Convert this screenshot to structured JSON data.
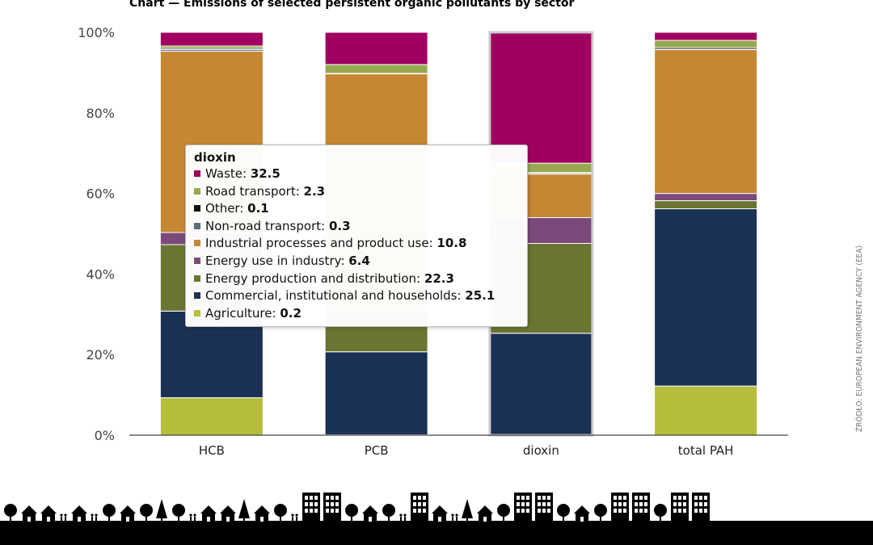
{
  "page": {
    "title": "Chart — Emissions of selected persistent organic pollutants by sector",
    "source": "ŹRÓDŁO: EUROPEAN ENVIRONMENT AGENCY (EEA)"
  },
  "chart_data": {
    "type": "bar",
    "stacked": true,
    "normalized": true,
    "categories": [
      "HCB",
      "PCB",
      "dioxin",
      "total PAH"
    ],
    "y_ticks": [
      "0%",
      "20%",
      "40%",
      "60%",
      "80%",
      "100%"
    ],
    "ylim": [
      0,
      100
    ],
    "grid": false,
    "series": [
      {
        "name": "Agriculture",
        "color": "#b5bd3a",
        "values": [
          9.3,
          0.1,
          0.2,
          12.2
        ]
      },
      {
        "name": "Commercial, institutional and households",
        "color": "#1b3055",
        "values": [
          21.5,
          20.6,
          25.1,
          44.0
        ]
      },
      {
        "name": "Energy production and distribution",
        "color": "#6b7431",
        "values": [
          16.5,
          6.5,
          22.3,
          2.0
        ]
      },
      {
        "name": "Energy use in industry",
        "color": "#7b4a7b",
        "values": [
          3.0,
          3.5,
          6.4,
          1.8
        ]
      },
      {
        "name": "Industrial processes and product use",
        "color": "#c68733",
        "values": [
          45.0,
          59.0,
          10.8,
          35.7
        ]
      },
      {
        "name": "Non-road transport",
        "color": "#5a6e80",
        "values": [
          0.4,
          0.1,
          0.3,
          0.1
        ]
      },
      {
        "name": "Other",
        "color": "#111111",
        "values": [
          0.3,
          0.0,
          0.1,
          0.4
        ]
      },
      {
        "name": "Road transport",
        "color": "#97a84f",
        "values": [
          0.6,
          2.2,
          2.3,
          1.8
        ]
      },
      {
        "name": "Waste",
        "color": "#a0005f",
        "values": [
          3.4,
          8.0,
          32.5,
          2.0
        ]
      }
    ],
    "tooltip": {
      "category": "dioxin",
      "rows": [
        {
          "label": "Waste: ",
          "value": "32.5",
          "color": "#a0005f"
        },
        {
          "label": "Road transport: ",
          "value": "2.3",
          "color": "#97a84f"
        },
        {
          "label": "Other: ",
          "value": "0.1",
          "color": "#111111"
        },
        {
          "label": "Non-road transport: ",
          "value": "0.3",
          "color": "#5a6e80"
        },
        {
          "label": "Industrial processes and product use: ",
          "value": "10.8",
          "color": "#c68733"
        },
        {
          "label": "Energy use in industry: ",
          "value": "6.4",
          "color": "#7b4a7b"
        },
        {
          "label": "Energy production and distribution: ",
          "value": "22.3",
          "color": "#6b7431"
        },
        {
          "label": "Commercial, institutional and households: ",
          "value": "25.1",
          "color": "#1b3055"
        },
        {
          "label": "Agriculture: ",
          "value": "0.2",
          "color": "#b5bd3a"
        }
      ]
    }
  }
}
